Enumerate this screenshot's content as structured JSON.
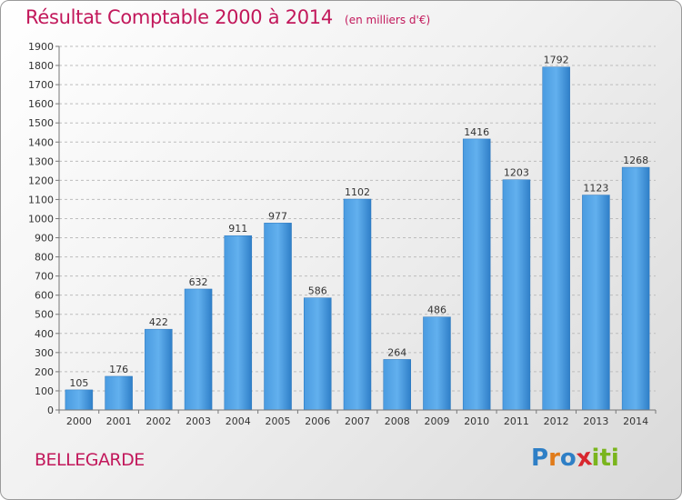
{
  "chart_data": {
    "type": "bar",
    "title": "Résultat Comptable 2000 à 2014",
    "subtitle": "(en milliers d'€)",
    "categories": [
      "2000",
      "2001",
      "2002",
      "2003",
      "2004",
      "2005",
      "2006",
      "2007",
      "2008",
      "2009",
      "2010",
      "2011",
      "2012",
      "2013",
      "2014"
    ],
    "values": [
      105,
      176,
      422,
      632,
      911,
      977,
      586,
      1102,
      264,
      486,
      1416,
      1203,
      1792,
      1123,
      1268
    ],
    "ylim": [
      0,
      1900
    ],
    "yticks": [
      0,
      100,
      200,
      300,
      400,
      500,
      600,
      700,
      800,
      900,
      1000,
      1100,
      1200,
      1300,
      1400,
      1500,
      1600,
      1700,
      1800,
      1900
    ],
    "grid": true,
    "bar_color": "#3d8fd6"
  },
  "footer": {
    "city": "BELLEGARDE",
    "logo_letters": [
      "P",
      "r",
      "o",
      "x",
      "i",
      "t",
      "i"
    ],
    "logo_colors": [
      "#2e7fc6",
      "#e07b1a",
      "#2e7fc6",
      "#d8262e",
      "#7ab51d",
      "#7ab51d",
      "#7ab51d"
    ]
  }
}
